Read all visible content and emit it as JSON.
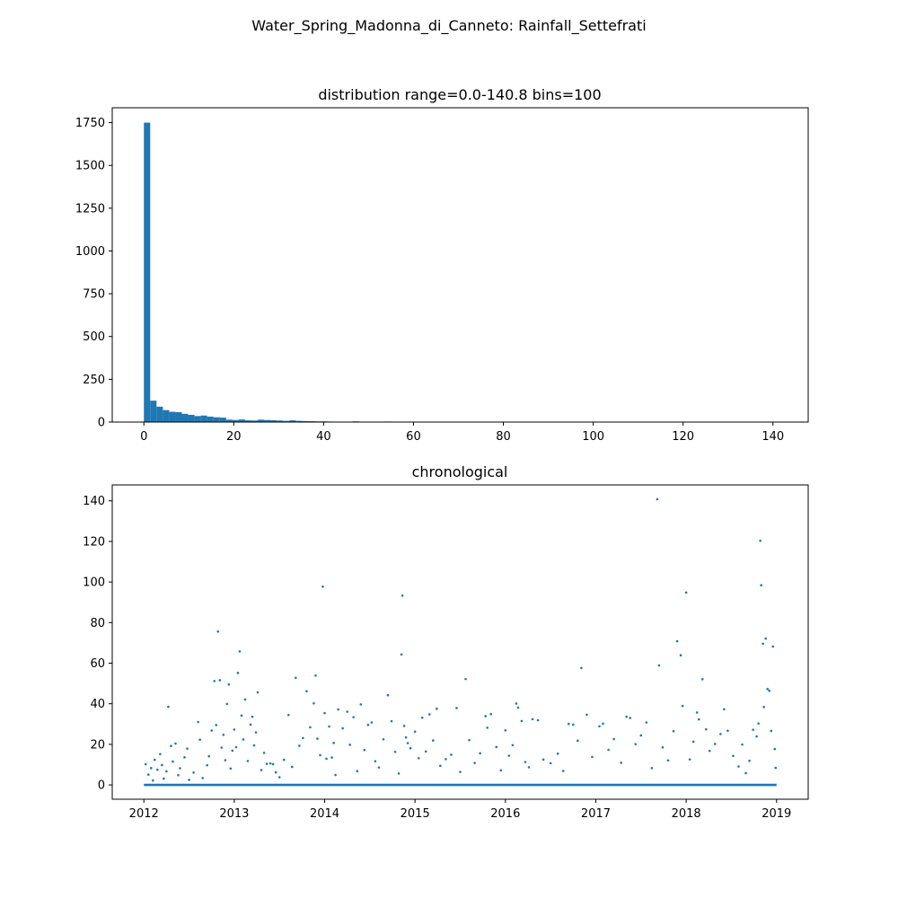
{
  "figure": {
    "suptitle": "Water_Spring_Madonna_di_Canneto: Rainfall_Settefrati"
  },
  "colors": {
    "series": "#1f77b4",
    "axis": "#000000",
    "background": "#ffffff"
  },
  "chart_data": [
    {
      "type": "bar",
      "title": "distribution range=0.0-140.8 bins=100",
      "xlabel": "",
      "ylabel": "",
      "xlim": [
        -7.04,
        147.84
      ],
      "ylim": [
        0,
        1837
      ],
      "grid": false,
      "bin_range": [
        0.0,
        140.8
      ],
      "bin_width": 1.408,
      "x_ticks": [
        0,
        20,
        40,
        60,
        80,
        100,
        120,
        140
      ],
      "x_tick_labels": [
        "0",
        "20",
        "40",
        "60",
        "80",
        "100",
        "120",
        "140"
      ],
      "y_ticks": [
        0,
        250,
        500,
        750,
        1000,
        1250,
        1500,
        1750
      ],
      "y_tick_labels": [
        "0",
        "250",
        "500",
        "750",
        "1000",
        "1250",
        "1500",
        "1750"
      ],
      "counts": [
        1750,
        125,
        90,
        70,
        60,
        58,
        48,
        42,
        35,
        38,
        32,
        28,
        26,
        14,
        12,
        15,
        10,
        9,
        14,
        12,
        11,
        9,
        7,
        10,
        7,
        6,
        5,
        4,
        4,
        3,
        2,
        2,
        2,
        4,
        2,
        1,
        1,
        2,
        3,
        1,
        1,
        1,
        1,
        1,
        1,
        1,
        2,
        1,
        1,
        1,
        0,
        1,
        0,
        1,
        1,
        0,
        0,
        0,
        0,
        0,
        0,
        0,
        0,
        0,
        0,
        0,
        1,
        0,
        0,
        1,
        0,
        0,
        0,
        0,
        0,
        0,
        0,
        0,
        0,
        0,
        0,
        0,
        0,
        0,
        1,
        1,
        0,
        0,
        0,
        0,
        0,
        0,
        0,
        0,
        0,
        0,
        0,
        0,
        0,
        1
      ]
    },
    {
      "type": "scatter",
      "title": "chronological",
      "xlabel": "",
      "ylabel": "",
      "x_unit": "year",
      "xlim": [
        2011.65,
        2019.35
      ],
      "ylim": [
        -7.04,
        147.84
      ],
      "grid": false,
      "x_ticks": [
        2012,
        2013,
        2014,
        2015,
        2016,
        2017,
        2018,
        2019
      ],
      "x_tick_labels": [
        "2012",
        "2013",
        "2014",
        "2015",
        "2016",
        "2017",
        "2018",
        "2019"
      ],
      "y_ticks": [
        0,
        20,
        40,
        60,
        80,
        100,
        120,
        140
      ],
      "y_tick_labels": [
        "0",
        "20",
        "40",
        "60",
        "80",
        "100",
        "120",
        "140"
      ],
      "baseline": {
        "x_range": [
          2012.0,
          2019.0
        ],
        "y": 0
      },
      "points": [
        [
          2012.02,
          10.2
        ],
        [
          2012.05,
          5.1
        ],
        [
          2012.08,
          8.3
        ],
        [
          2012.1,
          2.2
        ],
        [
          2012.12,
          12.4
        ],
        [
          2012.15,
          7.5
        ],
        [
          2012.18,
          15.2
        ],
        [
          2012.2,
          9.8
        ],
        [
          2012.22,
          3.1
        ],
        [
          2012.25,
          6.7
        ],
        [
          2012.27,
          38.5
        ],
        [
          2012.3,
          19.2
        ],
        [
          2012.32,
          11.5
        ],
        [
          2012.35,
          20.4
        ],
        [
          2012.38,
          4.8
        ],
        [
          2012.4,
          8.2
        ],
        [
          2012.45,
          13.6
        ],
        [
          2012.48,
          17.9
        ],
        [
          2012.5,
          2.5
        ],
        [
          2012.55,
          6.1
        ],
        [
          2012.6,
          31.0
        ],
        [
          2012.62,
          22.3
        ],
        [
          2012.65,
          3.4
        ],
        [
          2012.7,
          9.7
        ],
        [
          2012.72,
          14.1
        ],
        [
          2012.75,
          26.8
        ],
        [
          2012.78,
          51.2
        ],
        [
          2012.8,
          29.5
        ],
        [
          2012.82,
          75.6
        ],
        [
          2012.84,
          51.6
        ],
        [
          2012.86,
          18.4
        ],
        [
          2012.88,
          24.7
        ],
        [
          2012.9,
          12.2
        ],
        [
          2012.92,
          39.9
        ],
        [
          2012.94,
          49.5
        ],
        [
          2012.96,
          8.1
        ],
        [
          2012.98,
          16.9
        ],
        [
          2013.0,
          27.3
        ],
        [
          2013.02,
          18.6
        ],
        [
          2013.04,
          55.2
        ],
        [
          2013.06,
          65.8
        ],
        [
          2013.08,
          34.2
        ],
        [
          2013.1,
          22.4
        ],
        [
          2013.12,
          42.1
        ],
        [
          2013.15,
          11.8
        ],
        [
          2013.18,
          29.7
        ],
        [
          2013.2,
          33.6
        ],
        [
          2013.22,
          19.5
        ],
        [
          2013.24,
          25.9
        ],
        [
          2013.26,
          45.6
        ],
        [
          2013.3,
          7.3
        ],
        [
          2013.33,
          15.8
        ],
        [
          2013.36,
          10.4
        ],
        [
          2013.4,
          10.6
        ],
        [
          2013.43,
          10.2
        ],
        [
          2013.46,
          6.2
        ],
        [
          2013.5,
          3.8
        ],
        [
          2013.55,
          12.4
        ],
        [
          2013.6,
          34.5
        ],
        [
          2013.64,
          8.9
        ],
        [
          2013.68,
          52.8
        ],
        [
          2013.72,
          19.3
        ],
        [
          2013.76,
          23.1
        ],
        [
          2013.8,
          46.2
        ],
        [
          2013.84,
          28.4
        ],
        [
          2013.88,
          40.2
        ],
        [
          2013.9,
          53.9
        ],
        [
          2013.92,
          22.8
        ],
        [
          2013.95,
          14.7
        ],
        [
          2013.98,
          97.7
        ],
        [
          2014.0,
          35.4
        ],
        [
          2014.02,
          12.9
        ],
        [
          2014.05,
          28.8
        ],
        [
          2014.08,
          13.5
        ],
        [
          2014.1,
          20.7
        ],
        [
          2014.12,
          4.9
        ],
        [
          2014.15,
          37.2
        ],
        [
          2014.2,
          27.9
        ],
        [
          2014.25,
          36.1
        ],
        [
          2014.28,
          19.8
        ],
        [
          2014.32,
          33.4
        ],
        [
          2014.36,
          6.8
        ],
        [
          2014.4,
          39.7
        ],
        [
          2014.44,
          17.2
        ],
        [
          2014.48,
          29.6
        ],
        [
          2014.52,
          30.8
        ],
        [
          2014.56,
          11.7
        ],
        [
          2014.6,
          8.6
        ],
        [
          2014.65,
          22.5
        ],
        [
          2014.7,
          44.2
        ],
        [
          2014.74,
          31.4
        ],
        [
          2014.78,
          16.3
        ],
        [
          2014.82,
          5.6
        ],
        [
          2014.85,
          64.3
        ],
        [
          2014.86,
          93.3
        ],
        [
          2014.88,
          29.1
        ],
        [
          2014.9,
          23.4
        ],
        [
          2014.92,
          20.6
        ],
        [
          2014.95,
          18.1
        ],
        [
          2015.0,
          26.3
        ],
        [
          2015.04,
          13.2
        ],
        [
          2015.08,
          33.1
        ],
        [
          2015.12,
          16.5
        ],
        [
          2015.16,
          34.8
        ],
        [
          2015.2,
          21.9
        ],
        [
          2015.24,
          37.5
        ],
        [
          2015.28,
          9.4
        ],
        [
          2015.34,
          12.7
        ],
        [
          2015.4,
          14.9
        ],
        [
          2015.46,
          37.9
        ],
        [
          2015.5,
          6.4
        ],
        [
          2015.56,
          52.2
        ],
        [
          2015.6,
          22.1
        ],
        [
          2015.66,
          10.8
        ],
        [
          2015.72,
          15.6
        ],
        [
          2015.78,
          33.9
        ],
        [
          2015.8,
          28.2
        ],
        [
          2015.84,
          34.9
        ],
        [
          2015.9,
          18.7
        ],
        [
          2015.95,
          7.2
        ],
        [
          2016.0,
          26.9
        ],
        [
          2016.04,
          14.4
        ],
        [
          2016.08,
          19.6
        ],
        [
          2016.12,
          40.1
        ],
        [
          2016.14,
          38.1
        ],
        [
          2016.18,
          31.5
        ],
        [
          2016.22,
          11.3
        ],
        [
          2016.26,
          8.7
        ],
        [
          2016.3,
          32.4
        ],
        [
          2016.36,
          31.9
        ],
        [
          2016.42,
          12.5
        ],
        [
          2016.5,
          10.7
        ],
        [
          2016.58,
          15.4
        ],
        [
          2016.64,
          6.9
        ],
        [
          2016.7,
          30.1
        ],
        [
          2016.75,
          29.7
        ],
        [
          2016.8,
          21.8
        ],
        [
          2016.84,
          57.6
        ],
        [
          2016.9,
          34.6
        ],
        [
          2016.96,
          13.8
        ],
        [
          2017.04,
          28.9
        ],
        [
          2017.08,
          30.2
        ],
        [
          2017.14,
          17.3
        ],
        [
          2017.2,
          22.6
        ],
        [
          2017.28,
          10.9
        ],
        [
          2017.34,
          33.6
        ],
        [
          2017.38,
          33.0
        ],
        [
          2017.44,
          20.1
        ],
        [
          2017.5,
          24.4
        ],
        [
          2017.56,
          30.8
        ],
        [
          2017.62,
          8.3
        ],
        [
          2017.68,
          140.8
        ],
        [
          2017.7,
          58.9
        ],
        [
          2017.74,
          18.5
        ],
        [
          2017.8,
          12.1
        ],
        [
          2017.86,
          26.5
        ],
        [
          2017.9,
          70.8
        ],
        [
          2017.94,
          63.9
        ],
        [
          2017.96,
          38.9
        ],
        [
          2018.0,
          94.8
        ],
        [
          2018.04,
          12.6
        ],
        [
          2018.08,
          21.3
        ],
        [
          2018.12,
          35.7
        ],
        [
          2018.14,
          32.3
        ],
        [
          2018.18,
          52.1
        ],
        [
          2018.22,
          27.4
        ],
        [
          2018.26,
          16.8
        ],
        [
          2018.32,
          20.2
        ],
        [
          2018.38,
          25.1
        ],
        [
          2018.42,
          37.3
        ],
        [
          2018.46,
          26.7
        ],
        [
          2018.52,
          14.3
        ],
        [
          2018.58,
          9.1
        ],
        [
          2018.62,
          19.9
        ],
        [
          2018.66,
          5.8
        ],
        [
          2018.7,
          11.9
        ],
        [
          2018.74,
          27.2
        ],
        [
          2018.78,
          23.9
        ],
        [
          2018.8,
          30.3
        ],
        [
          2018.82,
          120.3
        ],
        [
          2018.83,
          98.4
        ],
        [
          2018.85,
          69.6
        ],
        [
          2018.86,
          38.4
        ],
        [
          2018.88,
          72.1
        ],
        [
          2018.9,
          47.3
        ],
        [
          2018.92,
          46.4
        ],
        [
          2018.94,
          26.6
        ],
        [
          2018.96,
          68.2
        ],
        [
          2018.98,
          17.7
        ],
        [
          2018.99,
          8.4
        ]
      ]
    }
  ]
}
